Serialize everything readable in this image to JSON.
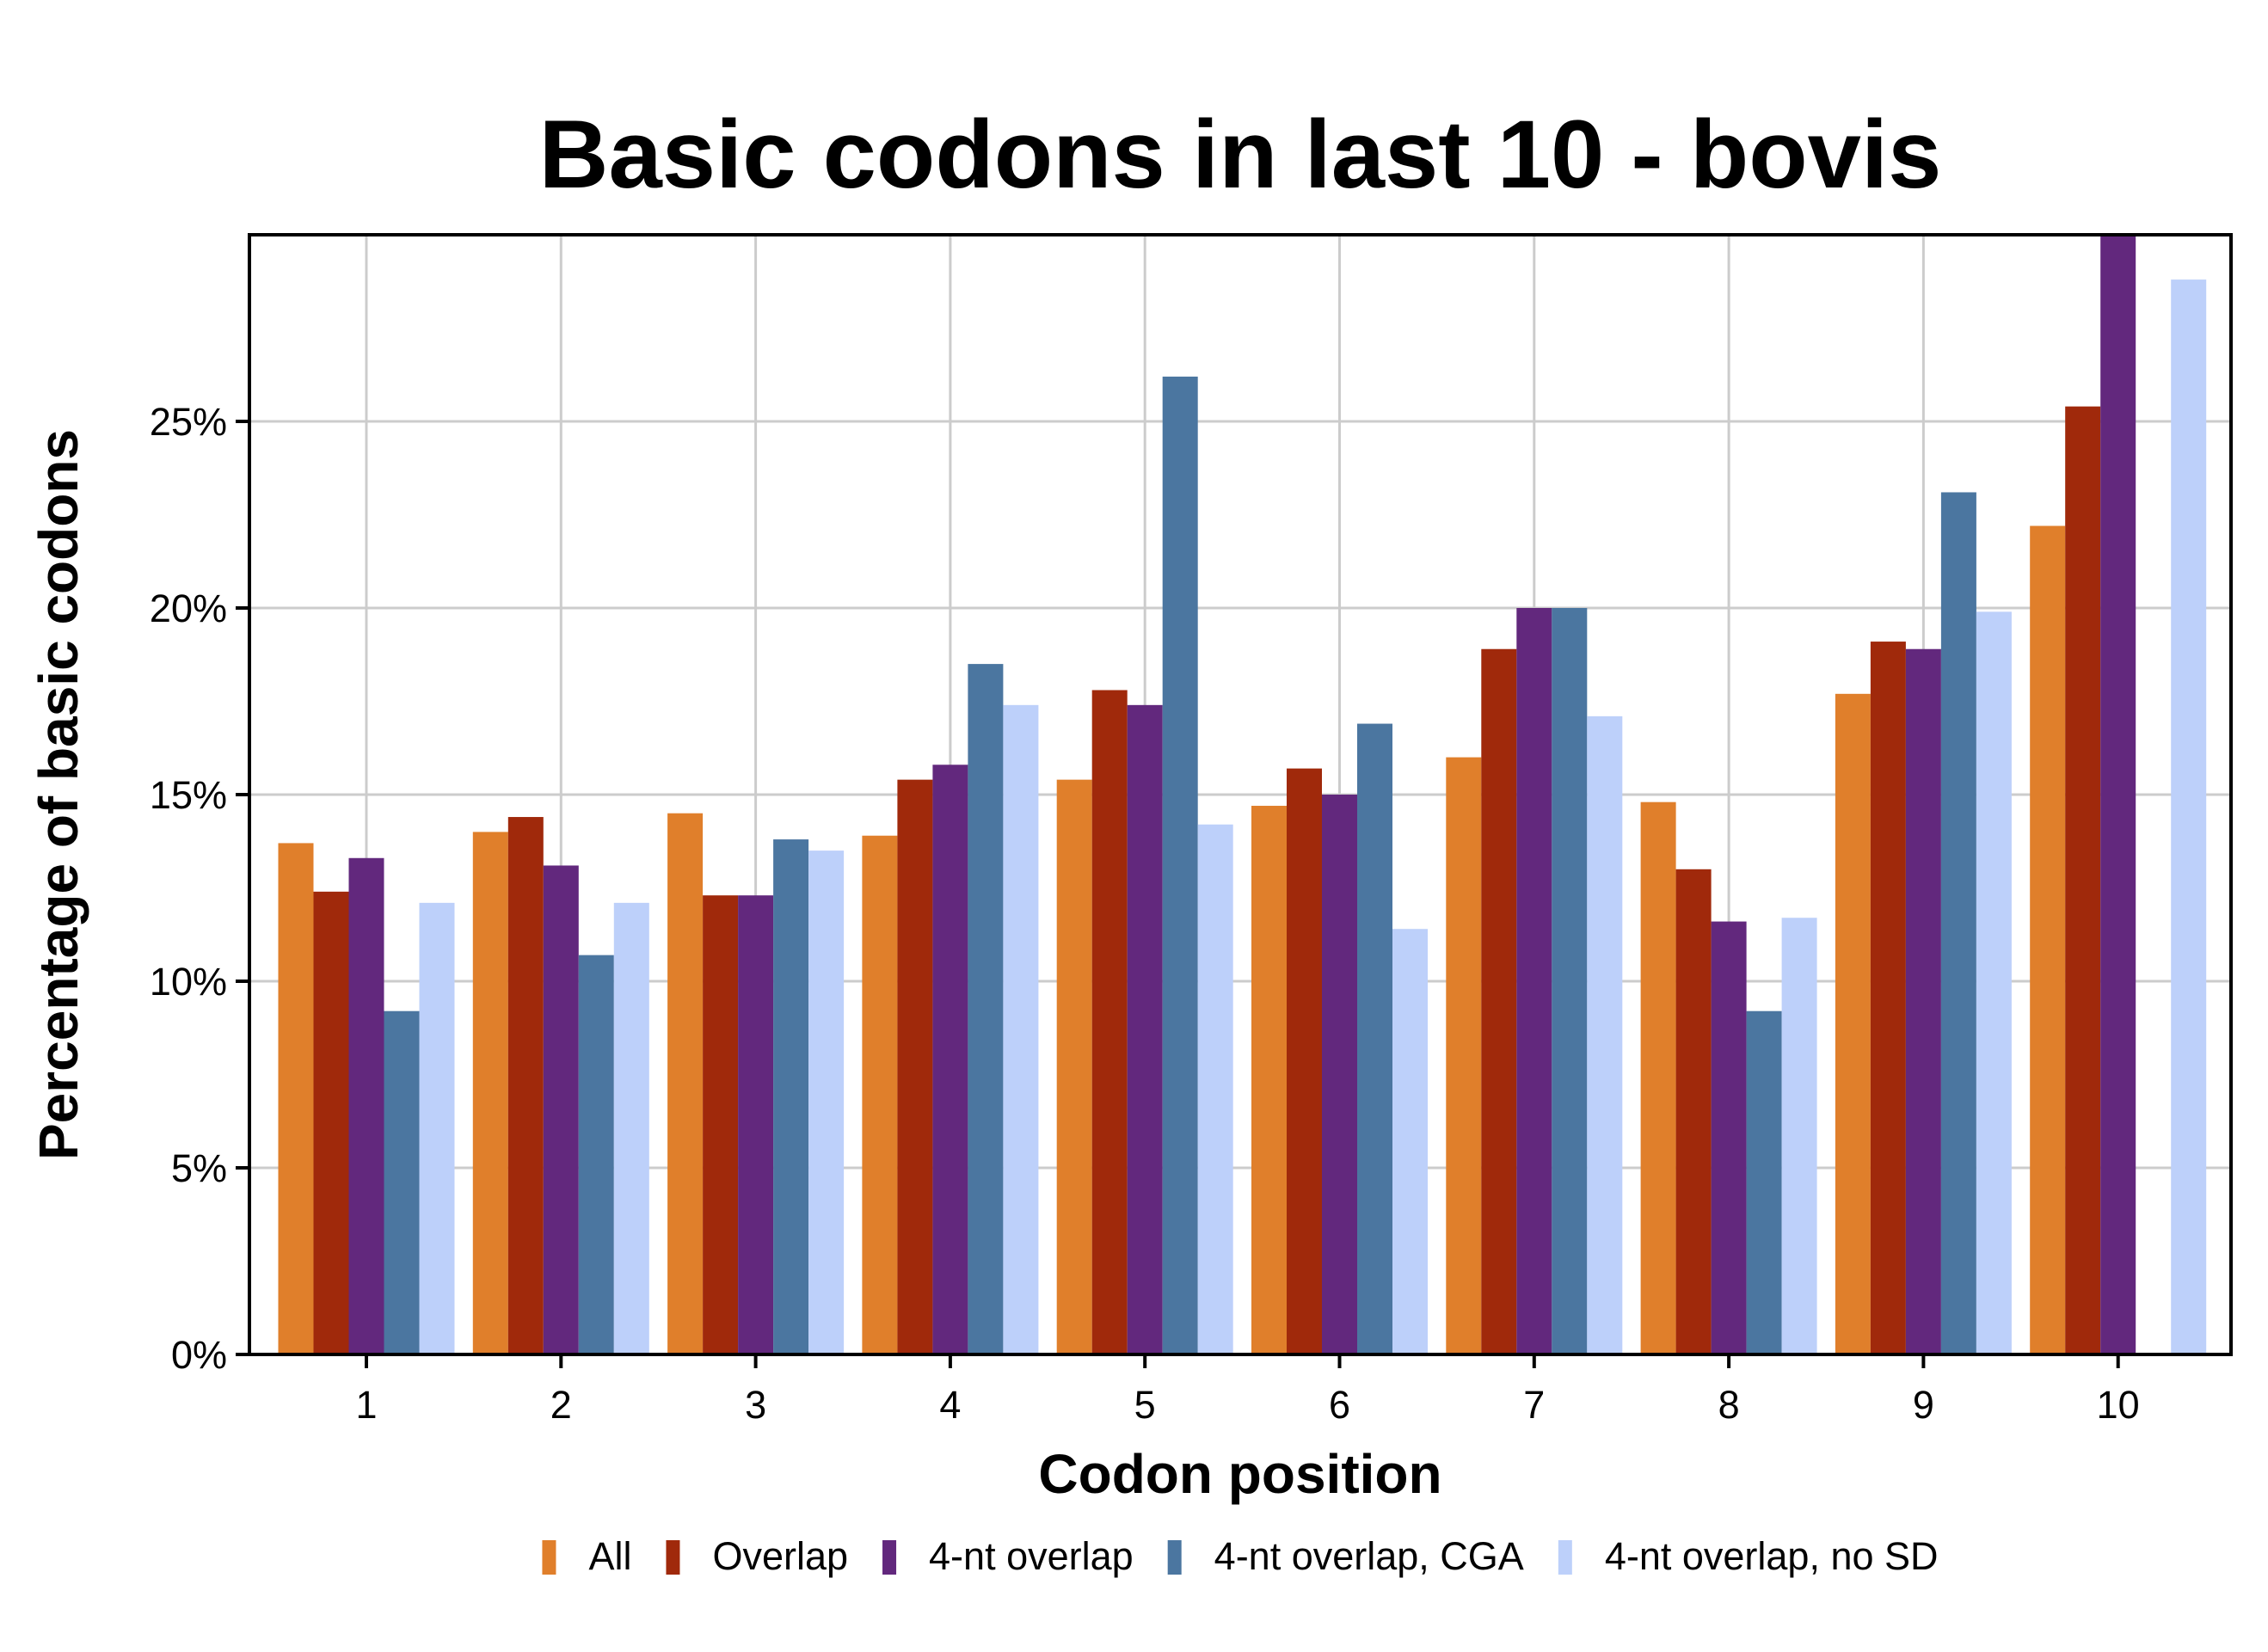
{
  "chart_data": {
    "type": "bar",
    "title": "Basic codons in last 10 - bovis",
    "xlabel": "Codon position",
    "ylabel": "Percentage of basic codons",
    "categories": [
      "1",
      "2",
      "3",
      "4",
      "5",
      "6",
      "7",
      "8",
      "9",
      "10"
    ],
    "y_ticks": [
      "0%",
      "5%",
      "10%",
      "15%",
      "20%",
      "25%"
    ],
    "ylim": [
      0,
      30
    ],
    "grid": true,
    "legend_position": "bottom",
    "series": [
      {
        "name": "All",
        "color": "#E07F2B",
        "values": [
          13.7,
          14.0,
          14.5,
          13.9,
          15.4,
          14.7,
          16.0,
          14.8,
          17.7,
          22.2
        ]
      },
      {
        "name": "Overlap",
        "color": "#A0290B",
        "values": [
          12.4,
          14.4,
          12.3,
          15.4,
          17.8,
          15.7,
          18.9,
          13.0,
          19.1,
          25.4
        ]
      },
      {
        "name": "4-nt overlap",
        "color": "#62287D",
        "values": [
          13.3,
          13.1,
          12.3,
          15.8,
          17.4,
          15.0,
          20.0,
          11.6,
          18.9,
          30.0
        ]
      },
      {
        "name": "4-nt overlap, CGA",
        "color": "#4B76A0",
        "values": [
          9.2,
          10.7,
          13.8,
          18.5,
          26.2,
          16.9,
          20.0,
          9.2,
          23.1,
          0
        ]
      },
      {
        "name": "4-nt overlap, no SD",
        "color": "#BDD0FA",
        "values": [
          12.1,
          12.1,
          13.5,
          17.4,
          14.2,
          11.4,
          17.1,
          11.7,
          19.9,
          28.8
        ]
      }
    ]
  }
}
